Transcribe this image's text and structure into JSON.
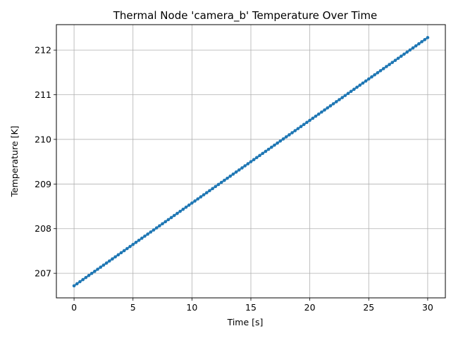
{
  "chart_data": {
    "type": "line",
    "title": "Thermal Node 'camera_b' Temperature Over Time",
    "xlabel": "Time [s]",
    "ylabel": "Temperature [K]",
    "xlim": [
      -1.5,
      31.5
    ],
    "ylim": [
      206.45,
      212.57
    ],
    "x_ticks": [
      0,
      5,
      10,
      15,
      20,
      25,
      30
    ],
    "x_tick_labels": [
      "0",
      "5",
      "10",
      "15",
      "20",
      "25",
      "30"
    ],
    "y_ticks": [
      207,
      208,
      209,
      210,
      211,
      212
    ],
    "y_tick_labels": [
      "207",
      "208",
      "209",
      "210",
      "211",
      "212"
    ],
    "grid": true,
    "series": [
      {
        "color": "#1f77b4",
        "marker": "dot",
        "x_start": 0,
        "x_end": 30,
        "x_step": 0.25,
        "y_start": 206.72,
        "y_end": 212.28
      }
    ]
  }
}
